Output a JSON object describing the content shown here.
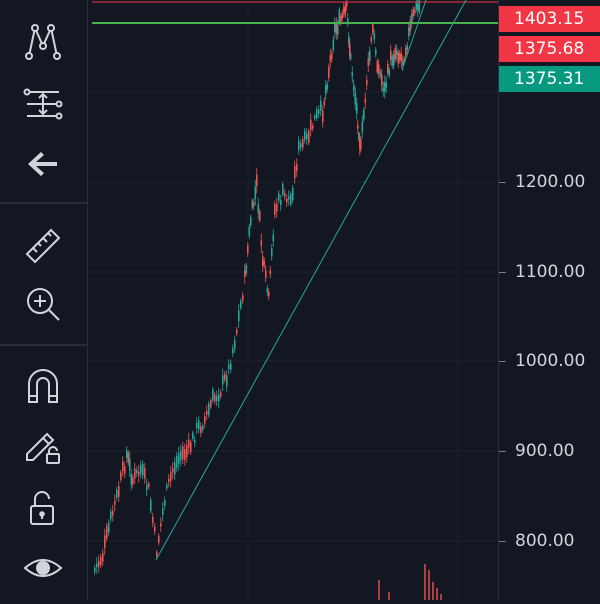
{
  "toolbar": {
    "tools": [
      {
        "name": "pattern-tool-icon"
      },
      {
        "name": "fib-tool-icon"
      },
      {
        "name": "back-arrow-icon"
      },
      {
        "name": "ruler-icon"
      },
      {
        "name": "zoom-in-icon"
      },
      {
        "name": "magnet-icon"
      },
      {
        "name": "lock-drawing-icon"
      },
      {
        "name": "unlock-icon"
      },
      {
        "name": "eye-icon"
      }
    ]
  },
  "price_axis": {
    "ticks": [
      "1200.00",
      "1100.00",
      "1000.00",
      "900.00",
      "800.00"
    ],
    "badges": [
      {
        "label": "1403.15",
        "color": "#f23645"
      },
      {
        "label": "1375.68",
        "color": "#f23645"
      },
      {
        "label": "1375.31",
        "color": "#089981"
      }
    ]
  },
  "colors": {
    "background": "#131722",
    "up_candle": "#26a69a",
    "down_candle": "#ef5350",
    "horizontal_line": "#4caf50",
    "trend_line": "#26a69a"
  }
}
